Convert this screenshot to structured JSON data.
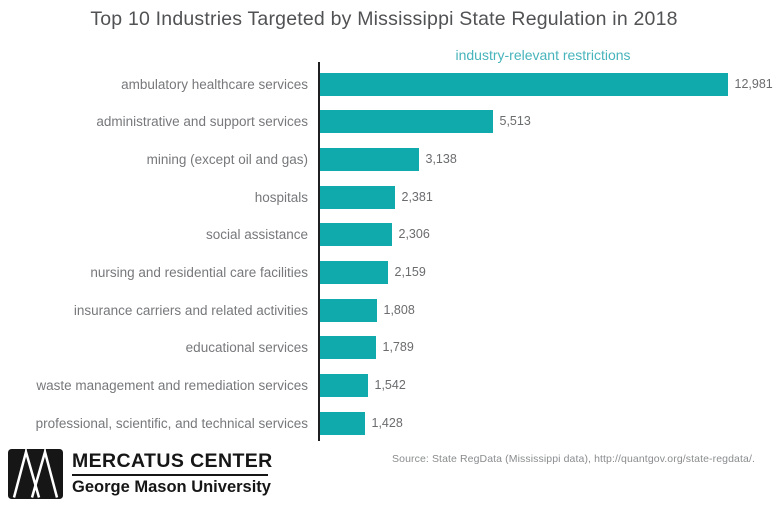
{
  "title": "Top 10 Industries Targeted by Mississippi State Regulation in 2018",
  "legend": "industry-relevant restrictions",
  "colors": {
    "bar": "#10a9ac",
    "legend_text": "#47b4bb",
    "axis": "#1f1f21",
    "category_text": "#77787b",
    "value_text": "#6b6c6e",
    "title_text": "#515254",
    "source_text": "#8a8c8e",
    "logo": "#161616"
  },
  "chart_data": {
    "type": "bar",
    "orientation": "horizontal",
    "title": "Top 10 Industries Targeted by Mississippi State Regulation in 2018",
    "series_label": "industry-relevant restrictions",
    "xlabel": "",
    "ylabel": "",
    "xlim": [
      0,
      13000
    ],
    "grid": false,
    "legend_position": "top",
    "categories": [
      "ambulatory healthcare services",
      "administrative and support services",
      "mining (except oil and gas)",
      "hospitals",
      "social assistance",
      "nursing and residential care facilities",
      "insurance carriers and related activities",
      "educational services",
      "waste management and remediation services",
      "professional, scientific, and technical services"
    ],
    "values": [
      12981,
      5513,
      3138,
      2381,
      2306,
      2159,
      1808,
      1789,
      1542,
      1428
    ],
    "value_labels": [
      "12,981",
      "5,513",
      "3,138",
      "2,381",
      "2,306",
      "2,159",
      "1,808",
      "1,789",
      "1,542",
      "1,428"
    ]
  },
  "footer": {
    "source": "Source: State RegData (Mississippi data), http://quantgov.org/state-regdata/.",
    "logo_title": "MERCATUS CENTER",
    "logo_subtitle": "George Mason University"
  }
}
